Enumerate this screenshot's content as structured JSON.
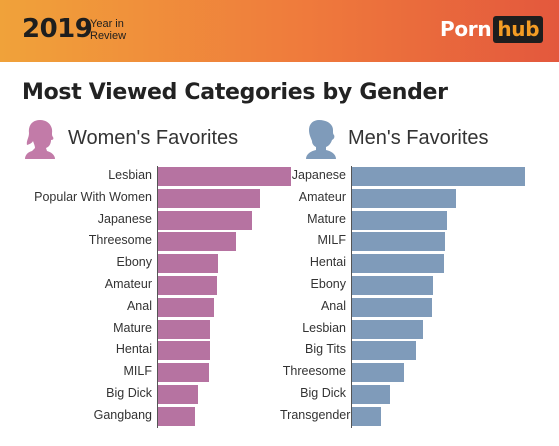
{
  "header": {
    "year": "2019",
    "year_in_review_line1": "Year in",
    "year_in_review_line2": "Review",
    "logo_text": "Porn",
    "logo_box_text": "hub"
  },
  "title": "Most Viewed Categories by Gender",
  "colors": {
    "women": "#b673a1",
    "men": "#7f9bba",
    "banner_start": "#f0a23a",
    "banner_end": "#e3583d"
  },
  "chart_data": [
    {
      "type": "bar",
      "orientation": "horizontal",
      "title": "Women's Favorites",
      "categories": [
        "Lesbian",
        "Popular With Women",
        "Japanese",
        "Threesome",
        "Ebony",
        "Amateur",
        "Anal",
        "Mature",
        "Hentai",
        "MILF",
        "Big Dick",
        "Gangbang"
      ],
      "values": [
        100,
        77,
        71,
        59,
        45,
        44,
        42,
        39,
        39,
        38,
        30,
        28
      ],
      "xlim": [
        0,
        100
      ],
      "grid": false,
      "legend": "none"
    },
    {
      "type": "bar",
      "orientation": "horizontal",
      "title": "Men's Favorites",
      "categories": [
        "Japanese",
        "Amateur",
        "Mature",
        "MILF",
        "Hentai",
        "Ebony",
        "Anal",
        "Lesbian",
        "Big Tits",
        "Threesome",
        "Big Dick",
        "Transgender"
      ],
      "values": [
        100,
        60,
        55,
        54,
        53,
        47,
        46,
        41,
        37,
        30,
        22,
        17
      ],
      "xlim": [
        0,
        100
      ],
      "grid": false,
      "legend": "none"
    }
  ]
}
